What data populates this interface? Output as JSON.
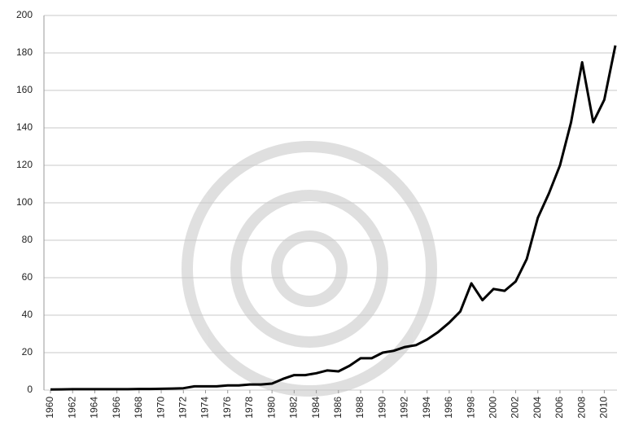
{
  "chart_data": {
    "type": "line",
    "x": [
      1960,
      1961,
      1962,
      1963,
      1964,
      1965,
      1966,
      1967,
      1968,
      1969,
      1970,
      1971,
      1972,
      1973,
      1974,
      1975,
      1976,
      1977,
      1978,
      1979,
      1980,
      1981,
      1982,
      1983,
      1984,
      1985,
      1986,
      1987,
      1988,
      1989,
      1990,
      1991,
      1992,
      1993,
      1994,
      1995,
      1996,
      1997,
      1998,
      1999,
      2000,
      2001,
      2002,
      2003,
      2004,
      2005,
      2006,
      2007,
      2008,
      2009,
      2010,
      2011
    ],
    "series": [
      {
        "color": "#000000",
        "values": [
          0.3,
          0.4,
          0.5,
          0.5,
          0.5,
          0.5,
          0.5,
          0.5,
          0.6,
          0.6,
          0.7,
          0.8,
          1,
          2,
          2,
          2,
          2.5,
          2.5,
          3,
          3,
          3.5,
          6,
          8,
          8,
          9,
          10.5,
          10,
          13,
          17,
          17,
          20,
          21,
          23,
          24,
          27,
          31,
          36,
          42,
          57,
          48,
          54,
          53,
          58,
          70,
          92,
          105,
          120,
          143,
          175,
          143,
          155,
          184
        ]
      }
    ],
    "xlim": [
      1960,
      2011
    ],
    "xticks": [
      1960,
      1962,
      1964,
      1966,
      1968,
      1970,
      1972,
      1974,
      1976,
      1978,
      1980,
      1982,
      1984,
      1986,
      1988,
      1990,
      1992,
      1994,
      1996,
      1998,
      2000,
      2002,
      2004,
      2006,
      2008,
      2010
    ],
    "ylim": [
      0,
      200
    ],
    "yticks": [
      0,
      20,
      40,
      60,
      80,
      100,
      120,
      140,
      160,
      180,
      200
    ],
    "grid": true
  }
}
